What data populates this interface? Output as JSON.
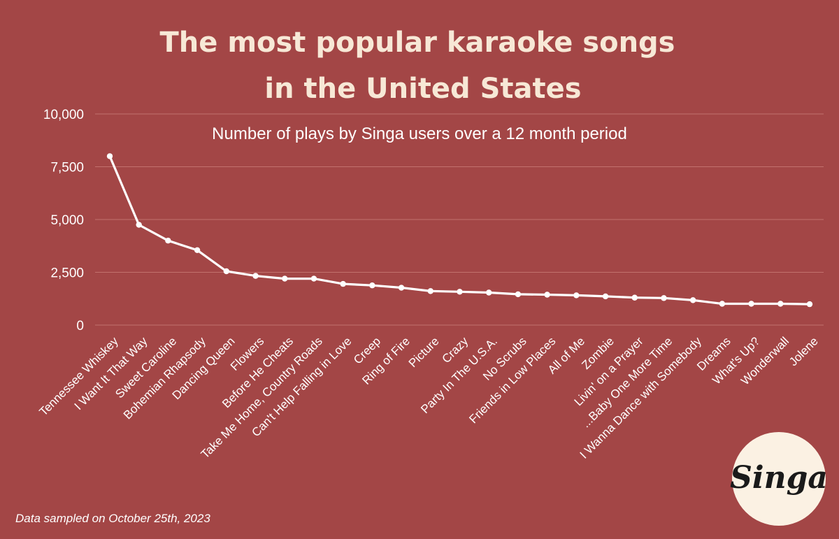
{
  "chart_data": {
    "type": "line",
    "title_lines": [
      "The most popular karaoke songs",
      "in the United States"
    ],
    "subtitle": "Number of plays by Singa users over a 12 month period",
    "xlabel": "",
    "ylabel": "",
    "ylim": [
      0,
      10000
    ],
    "yticks": [
      0,
      2500,
      5000,
      7500,
      10000
    ],
    "ytick_labels": [
      "0",
      "2,500",
      "5,000",
      "7,500",
      "10,000"
    ],
    "grid": true,
    "categories": [
      "Tennessee Whiskey",
      "I Want It That Way",
      "Sweet Caroline",
      "Bohemian Rhapsody",
      "Dancing Queen",
      "Flowers",
      "Before He Cheats",
      "Take Me Home, Country Roads",
      "Can't Help Falling in Love",
      "Creep",
      "Ring of Fire",
      "Picture",
      "Crazy",
      "Party In The U.S.A.",
      "No Scrubs",
      "Friends in Low Places",
      "All of Me",
      "Zombie",
      "Livin' on a Prayer",
      "...Baby One More Time",
      "I Wanna Dance with Somebody",
      "Dreams",
      "What's Up?",
      "Wonderwall",
      "Jolene"
    ],
    "values": [
      8000,
      4750,
      4000,
      3550,
      2550,
      2330,
      2200,
      2200,
      1950,
      1880,
      1770,
      1610,
      1580,
      1540,
      1460,
      1440,
      1410,
      1360,
      1300,
      1280,
      1180,
      1010,
      1010,
      1010,
      990
    ],
    "line_color": "#ffffff"
  },
  "footer": {
    "note": "Data sampled on October 25th, 2023"
  },
  "logo": {
    "text": "Singa"
  },
  "colors": {
    "background": "#a34646",
    "title": "#f7e8d6",
    "grid": "#c2716d"
  }
}
